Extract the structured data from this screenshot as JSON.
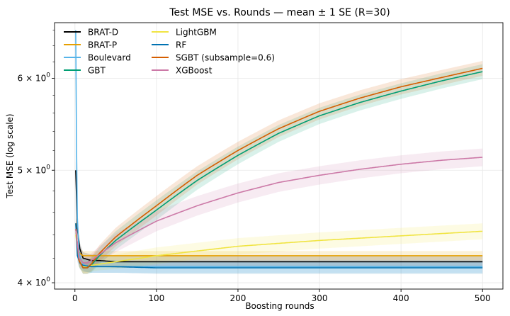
{
  "chart_data": {
    "type": "line",
    "title": "Test MSE vs. Rounds — mean ± 1 SE (R=30)",
    "xlabel": "Boosting rounds",
    "ylabel": "Test MSE (log scale)",
    "yscale": "log",
    "grid": true,
    "legend_position": "top-left",
    "xlim": [
      -25,
      525
    ],
    "ylim": [
      3.95,
      6.7
    ],
    "x_ticks": [
      0,
      100,
      200,
      300,
      400,
      500
    ],
    "x_tick_labels": [
      "0",
      "100",
      "200",
      "300",
      "400",
      "500"
    ],
    "y_ticks": [
      4,
      5,
      6
    ],
    "y_tick_bases": [
      "4",
      "5",
      "6"
    ],
    "y_tick_suffix": "× 10",
    "y_tick_exponent": "0",
    "legend_columns": 2,
    "series": [
      {
        "name": "BRAT-D",
        "color": "#000000",
        "x": [
          1,
          3,
          6,
          10,
          15,
          20,
          30,
          50,
          100,
          200,
          300,
          400,
          500
        ],
        "y": [
          5.0,
          4.45,
          4.28,
          4.2,
          4.19,
          4.18,
          4.18,
          4.17,
          4.17,
          4.17,
          4.17,
          4.17,
          4.17
        ],
        "se": [
          0.1,
          0.06,
          0.05,
          0.05,
          0.05,
          0.05,
          0.05,
          0.05,
          0.05,
          0.05,
          0.05,
          0.05,
          0.05
        ]
      },
      {
        "name": "BRAT-P",
        "color": "#E69F00",
        "x": [
          1,
          3,
          6,
          10,
          15,
          20,
          30,
          50,
          100,
          200,
          300,
          400,
          500
        ],
        "y": [
          4.5,
          4.3,
          4.24,
          4.22,
          4.22,
          4.22,
          4.22,
          4.22,
          4.22,
          4.22,
          4.22,
          4.22,
          4.22
        ],
        "se": [
          0.08,
          0.05,
          0.04,
          0.04,
          0.04,
          0.04,
          0.04,
          0.04,
          0.04,
          0.04,
          0.04,
          0.04,
          0.04
        ]
      },
      {
        "name": "Boulevard",
        "color": "#56B4E9",
        "x": [
          1,
          2,
          3,
          5,
          8,
          12,
          20,
          30,
          50,
          100,
          200,
          300,
          400,
          500
        ],
        "y": [
          6.6,
          5.2,
          4.55,
          4.25,
          4.17,
          4.14,
          4.13,
          4.13,
          4.13,
          4.13,
          4.13,
          4.13,
          4.13,
          4.13
        ],
        "se": [
          0.15,
          0.12,
          0.08,
          0.06,
          0.05,
          0.05,
          0.05,
          0.05,
          0.05,
          0.05,
          0.05,
          0.05,
          0.05,
          0.05
        ]
      },
      {
        "name": "GBT",
        "color": "#009E73",
        "x": [
          1,
          5,
          10,
          15,
          20,
          30,
          50,
          100,
          150,
          200,
          250,
          300,
          350,
          400,
          450,
          500
        ],
        "y": [
          4.45,
          4.18,
          4.12,
          4.12,
          4.14,
          4.22,
          4.35,
          4.62,
          4.9,
          5.15,
          5.38,
          5.57,
          5.72,
          5.85,
          5.97,
          6.08
        ],
        "se": [
          0.06,
          0.05,
          0.05,
          0.05,
          0.06,
          0.07,
          0.08,
          0.09,
          0.09,
          0.09,
          0.09,
          0.09,
          0.09,
          0.09,
          0.09,
          0.09
        ]
      },
      {
        "name": "LightGBM",
        "color": "#F0E442",
        "x": [
          1,
          5,
          10,
          15,
          20,
          30,
          50,
          100,
          150,
          200,
          300,
          400,
          500
        ],
        "y": [
          4.4,
          4.18,
          4.13,
          4.13,
          4.14,
          4.15,
          4.17,
          4.22,
          4.26,
          4.3,
          4.35,
          4.39,
          4.43
        ],
        "se": [
          0.06,
          0.05,
          0.05,
          0.05,
          0.05,
          0.05,
          0.06,
          0.07,
          0.07,
          0.07,
          0.07,
          0.07,
          0.07
        ]
      },
      {
        "name": "RF",
        "color": "#0072B2",
        "x": [
          1,
          3,
          6,
          10,
          20,
          50,
          100,
          200,
          300,
          400,
          500
        ],
        "y": [
          4.5,
          4.22,
          4.16,
          4.14,
          4.13,
          4.13,
          4.12,
          4.12,
          4.12,
          4.12,
          4.12
        ],
        "se": [
          0.07,
          0.05,
          0.05,
          0.05,
          0.05,
          0.05,
          0.05,
          0.05,
          0.05,
          0.05,
          0.05
        ]
      },
      {
        "name": "SGBT (subsample=0.6)",
        "color": "#D55E00",
        "x": [
          1,
          5,
          10,
          15,
          20,
          30,
          50,
          100,
          150,
          200,
          250,
          300,
          350,
          400,
          450,
          500
        ],
        "y": [
          4.45,
          4.18,
          4.12,
          4.12,
          4.15,
          4.24,
          4.38,
          4.66,
          4.95,
          5.2,
          5.43,
          5.62,
          5.77,
          5.9,
          6.01,
          6.12
        ],
        "se": [
          0.06,
          0.05,
          0.05,
          0.05,
          0.06,
          0.07,
          0.08,
          0.09,
          0.09,
          0.09,
          0.09,
          0.09,
          0.09,
          0.09,
          0.09,
          0.09
        ]
      },
      {
        "name": "XGBoost",
        "color": "#CC79A7",
        "x": [
          1,
          5,
          10,
          15,
          20,
          30,
          50,
          100,
          150,
          200,
          250,
          300,
          350,
          400,
          450,
          500
        ],
        "y": [
          4.45,
          4.2,
          4.16,
          4.16,
          4.18,
          4.23,
          4.33,
          4.52,
          4.66,
          4.78,
          4.88,
          4.95,
          5.01,
          5.06,
          5.1,
          5.13
        ],
        "se": [
          0.06,
          0.05,
          0.05,
          0.05,
          0.06,
          0.07,
          0.08,
          0.09,
          0.09,
          0.09,
          0.09,
          0.09,
          0.09,
          0.09,
          0.09,
          0.09
        ]
      }
    ]
  }
}
